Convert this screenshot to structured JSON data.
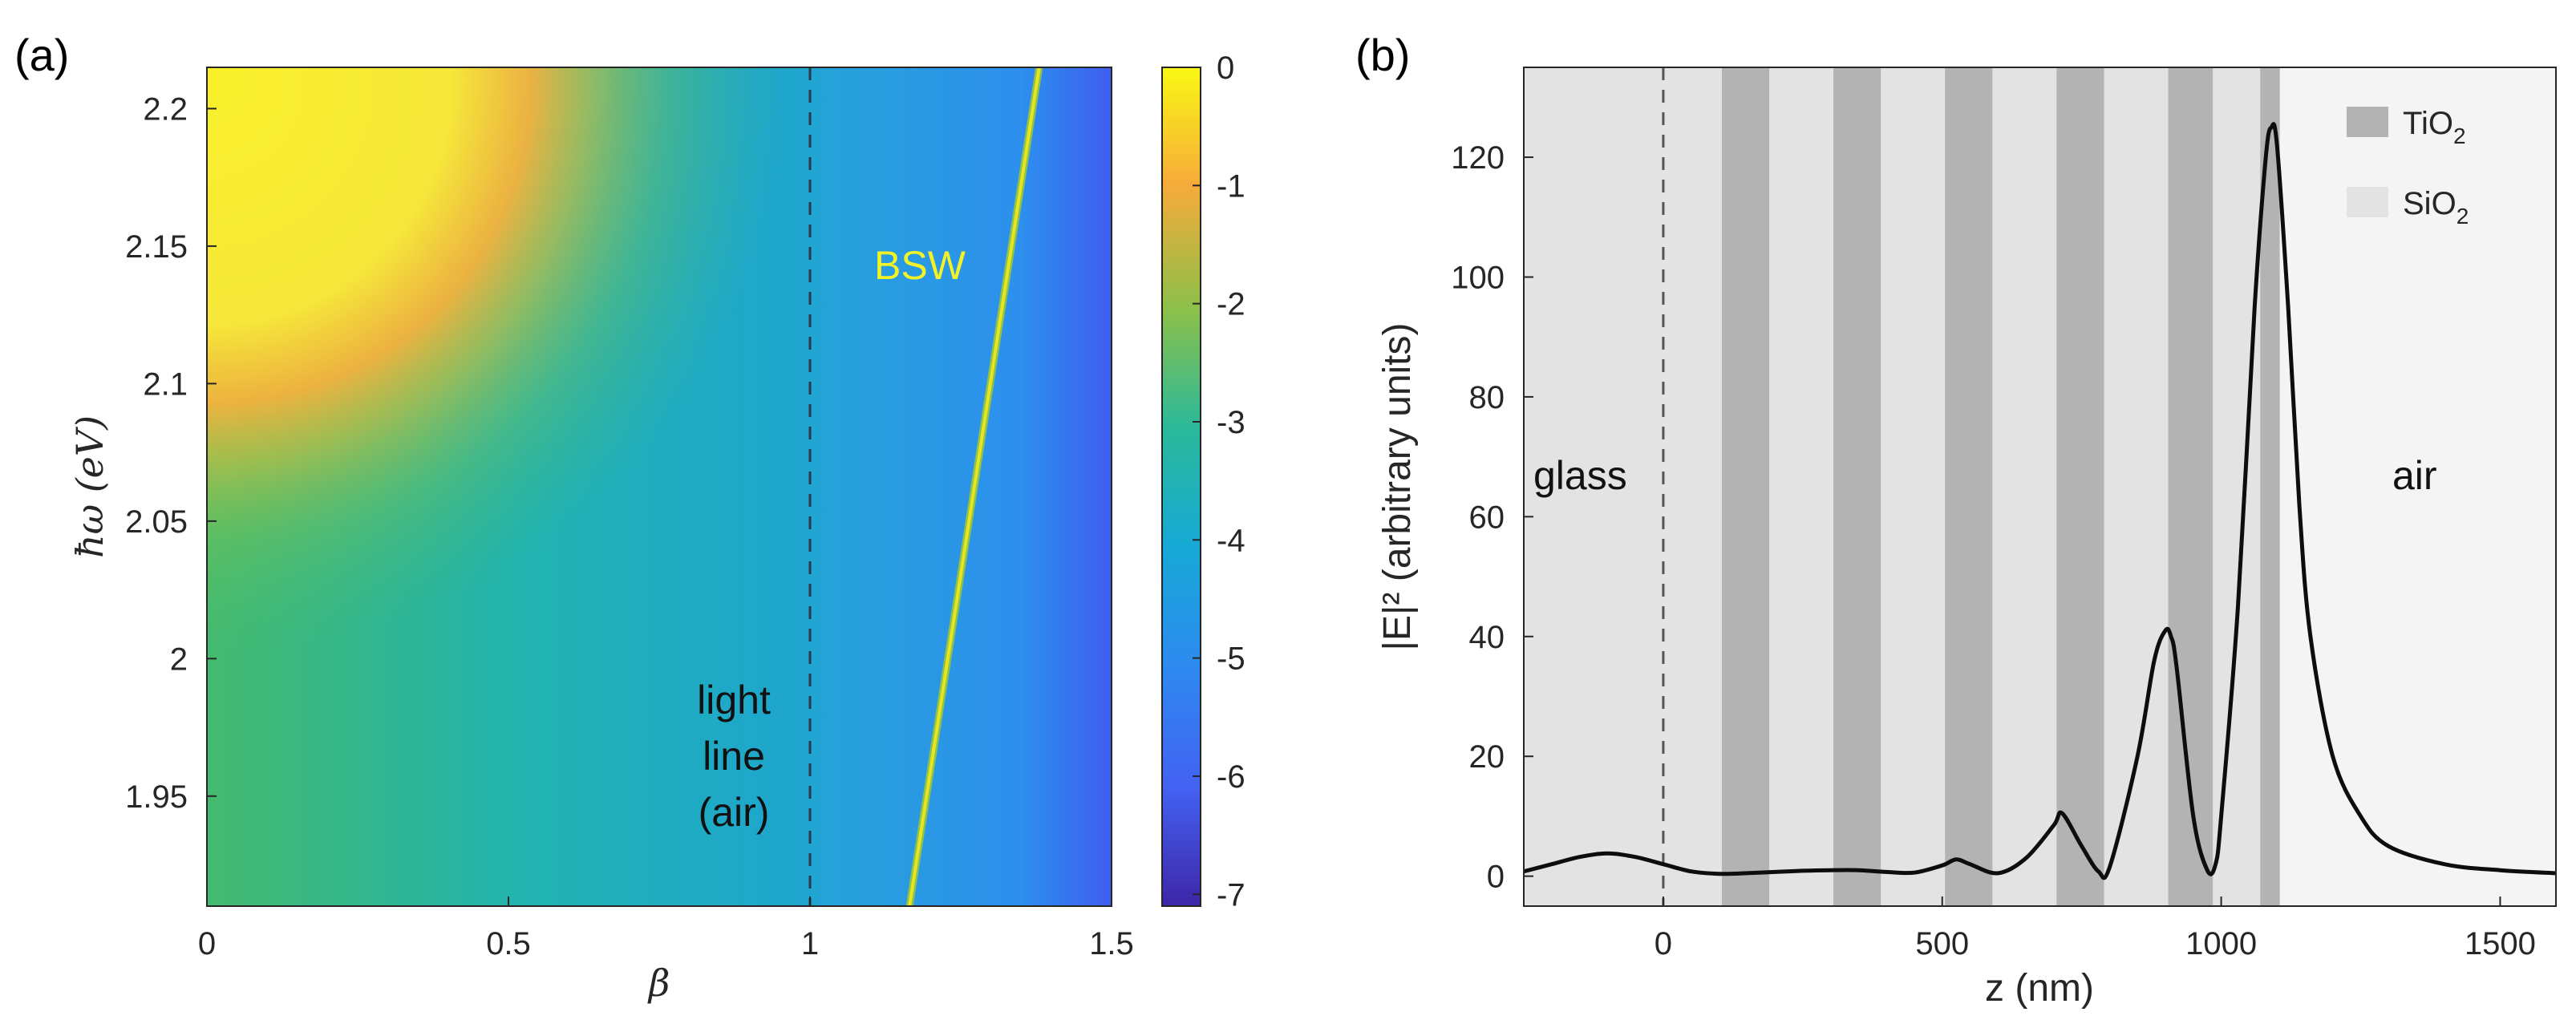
{
  "panel_a_label": "(a)",
  "panel_b_label": "(b)",
  "chart_data": [
    {
      "type": "heatmap",
      "panel": "(a)",
      "xlabel": "β",
      "ylabel": "ħω (eV)",
      "xlim": [
        0,
        1.5
      ],
      "ylim": [
        1.91,
        2.215
      ],
      "xticks": [
        "0",
        "0.5",
        "1",
        "1.5"
      ],
      "yticks": [
        "1.95",
        "2",
        "2.05",
        "2.1",
        "2.15",
        "2.2"
      ],
      "colorbar": {
        "range": [
          -7.1,
          0
        ],
        "ticks": [
          "0",
          "-1",
          "-2",
          "-3",
          "-4",
          "-5",
          "-6",
          "-7"
        ]
      },
      "light_line": {
        "beta": 1.0,
        "label_lines": [
          "light",
          "line",
          "(air)"
        ]
      },
      "bsw_line": {
        "label": "BSW",
        "beta_start": 1.165,
        "energy_start": 1.91,
        "beta_end": 1.38,
        "energy_end": 2.215
      },
      "peak_region": {
        "beta": 0.05,
        "energy": 2.2
      }
    },
    {
      "type": "line",
      "panel": "(b)",
      "xlabel": "z (nm)",
      "ylabel": "|E|² (arbitrary units)",
      "xlim": [
        -250,
        1600
      ],
      "ylim": [
        -5,
        135
      ],
      "xticks": [
        "0",
        "500",
        "1000",
        "1500"
      ],
      "yticks": [
        "0",
        "20",
        "40",
        "60",
        "80",
        "100",
        "120"
      ],
      "x": [
        -250,
        -200,
        -150,
        -100,
        -50,
        0,
        50,
        100,
        150,
        200,
        250,
        300,
        350,
        400,
        450,
        500,
        525,
        550,
        600,
        650,
        700,
        715,
        750,
        780,
        800,
        850,
        880,
        900,
        910,
        920,
        950,
        975,
        990,
        1000,
        1030,
        1060,
        1080,
        1090,
        1100,
        1120,
        1140,
        1160,
        1200,
        1250,
        1300,
        1400,
        1500,
        1600
      ],
      "y": [
        0.8,
        2.0,
        3.2,
        3.8,
        3.2,
        2.0,
        0.8,
        0.4,
        0.5,
        0.7,
        0.9,
        1.0,
        1.0,
        0.7,
        0.6,
        1.8,
        2.8,
        2.0,
        0.5,
        3.0,
        8.5,
        10.5,
        5.0,
        0.8,
        1.5,
        20.0,
        36.0,
        41.0,
        40.0,
        35.0,
        10.0,
        1.0,
        2.0,
        10.0,
        45.0,
        95.0,
        120.0,
        125.0,
        122.0,
        95.0,
        62.0,
        40.0,
        20.0,
        10.0,
        5.0,
        2.0,
        1.0,
        0.5
      ],
      "regions": [
        {
          "label": "glass",
          "from": -250,
          "to": 0
        },
        {
          "label": "air",
          "from": 1105,
          "to": 1600
        }
      ],
      "tio2_layers": [
        [
          105,
          190
        ],
        [
          305,
          390
        ],
        [
          505,
          590
        ],
        [
          705,
          790
        ],
        [
          905,
          985
        ],
        [
          1070,
          1105
        ]
      ],
      "legend": [
        {
          "label": "TiO",
          "sub": "2",
          "color": "#b3b3b3"
        },
        {
          "label": "SiO",
          "sub": "2",
          "color": "#e3e3e3"
        }
      ]
    }
  ]
}
